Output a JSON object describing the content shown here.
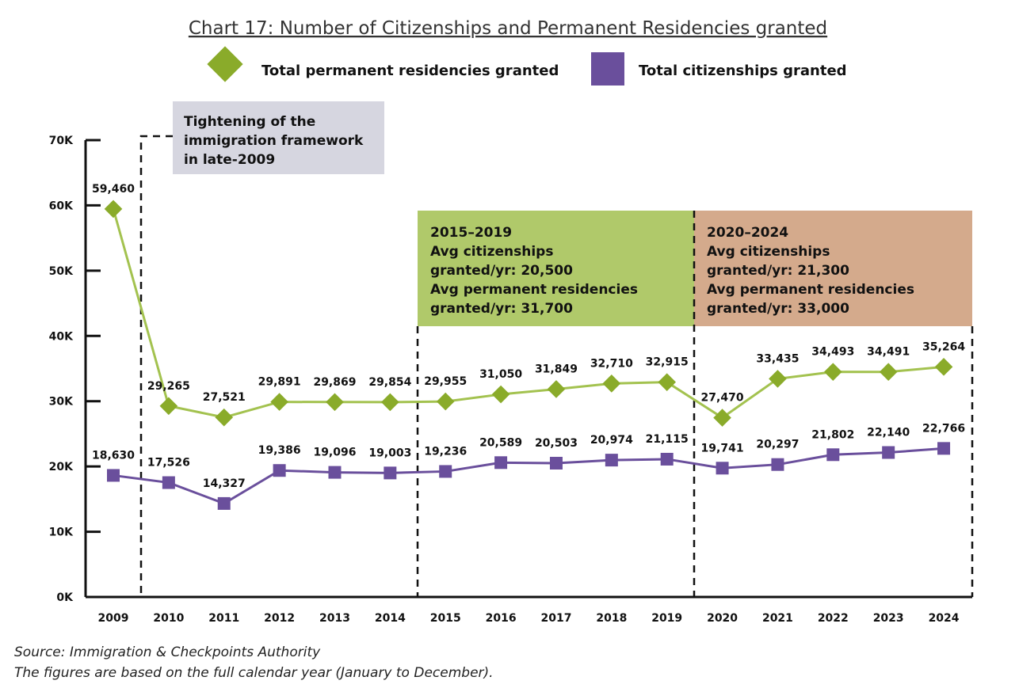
{
  "chart_data": {
    "type": "line",
    "title": "Chart 17: Number of Citizenships and Permanent Residencies granted",
    "categories": [
      "2009",
      "2010",
      "2011",
      "2012",
      "2013",
      "2014",
      "2015",
      "2016",
      "2017",
      "2018",
      "2019",
      "2020",
      "2021",
      "2022",
      "2023",
      "2024"
    ],
    "series": [
      {
        "name": "Total permanent residencies granted",
        "color": "#8aab2a",
        "marker": "diamond",
        "values": [
          59460,
          29265,
          27521,
          29891,
          29869,
          29854,
          29955,
          31050,
          31849,
          32710,
          32915,
          27470,
          33435,
          34493,
          34491,
          35264
        ],
        "labels": [
          "59,460",
          "29,265",
          "27,521",
          "29,891",
          "29,869",
          "29,854",
          "29,955",
          "31,050",
          "31,849",
          "32,710",
          "32,915",
          "27,470",
          "33,435",
          "34,493",
          "34,491",
          "35,264"
        ]
      },
      {
        "name": "Total citizenships granted",
        "color": "#6a4f9c",
        "marker": "square",
        "values": [
          18630,
          17526,
          14327,
          19386,
          19096,
          19003,
          19236,
          20589,
          20503,
          20974,
          21115,
          19741,
          20297,
          21802,
          22140,
          22766
        ],
        "labels": [
          "18,630",
          "17,526",
          "14,327",
          "19,386",
          "19,096",
          "19,003",
          "19,236",
          "20,589",
          "20,503",
          "20,974",
          "21,115",
          "19,741",
          "20,297",
          "21,802",
          "22,140",
          "22,766"
        ]
      }
    ],
    "ylim": [
      0,
      70000
    ],
    "yticks": [
      "0K",
      "10K",
      "20K",
      "30K",
      "40K",
      "50K",
      "60K",
      "70K"
    ],
    "legend_placement": "top",
    "grid": false,
    "annotations": {
      "tightening": {
        "lines": [
          "Tightening of the",
          "immigration framework",
          "in late-2009"
        ],
        "color": "#d6d6e0"
      },
      "period1": {
        "title": "2015–2019",
        "l1": "Avg citizenships",
        "l2a": "granted/yr: ",
        "l2b": "20,500",
        "l3": "Avg permanent residencies",
        "l4a": "granted/yr: ",
        "l4b": "31,700",
        "color": "#b0c96a"
      },
      "period2": {
        "title": "2020–2024",
        "l1": "Avg citizenships",
        "l2a": "granted/yr: ",
        "l2b": "21,300",
        "l3": "Avg permanent residencies",
        "l4a": "granted/yr: ",
        "l4b": "33,000",
        "color": "#d4aa8c"
      }
    }
  },
  "source": "Source: Immigration & Checkpoints Authority",
  "note": "The figures are based on the full calendar year (January to December)."
}
